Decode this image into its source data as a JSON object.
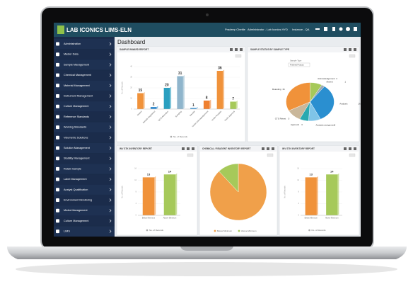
{
  "header": {
    "logo": "LAB ICONICS LIMS-ELN",
    "user": "Pradeep Chettle",
    "role": "Administrator - Lab Iconics HYD",
    "instance": "Instance - QA"
  },
  "sidebar": [
    "Administration",
    "Master Data",
    "Sample Management",
    "Chemical Management",
    "Material Management",
    "Instrument Management",
    "Culture Management",
    "Reference Standards",
    "Working Standards",
    "Volumetric Solutions",
    "Solution Management",
    "Stability Management",
    "Retain Sample",
    "Label Management",
    "Analyst Qualification",
    "Environment Monitoring",
    "Media Management",
    "Culture Management",
    "LIMS"
  ],
  "page_title": "Dashboard",
  "panels": [
    {
      "title": "SAMPLE INWARD REPORT",
      "type": "bar",
      "y_label": "No. of Records",
      "legend": "No. of Records",
      "categories": [
        "Inward",
        "Sample Registered",
        "QC/A Allocation",
        "Sampling",
        "Receipt",
        "Under Acknowledgement",
        "Under Analysis",
        "Under Approval"
      ],
      "values": [
        15,
        2,
        20,
        31,
        1,
        8,
        36,
        7
      ],
      "colors": [
        "#f0923a",
        "#3a8fd0",
        "#2a9fc0",
        "#8fb5cc",
        "#3a8fd0",
        "#ef8030",
        "#f0923a",
        "#a6c95a"
      ],
      "ylim": [
        0,
        40
      ],
      "yticks": [
        0,
        10,
        20,
        30,
        40
      ]
    },
    {
      "title": "SAMPLE STATUS BY SAMPLE TYPE",
      "type": "pie",
      "filter_label": "Sample Type",
      "filter_value": "Finished Product",
      "categories": [
        "Acknowledgement",
        "Absent",
        "Analysis",
        "Analysis assignment",
        "Approval",
        "CTS Retest",
        "Retesting"
      ],
      "values": [
        4,
        1,
        16,
        4,
        3,
        5,
        16
      ],
      "colors": [
        "#a6c95a",
        "#9aa8b4",
        "#2a8fd0",
        "#7fc4e8",
        "#2aa9b0",
        "#c9b79a",
        "#f0923a"
      ]
    },
    {
      "title": "INV STK INVENTORY REPORT",
      "type": "bar",
      "y_label": "No. of Records",
      "legend": "No. of Records",
      "categories": [
        "Below Minimum",
        "Above Minimum"
      ],
      "values": [
        13,
        14
      ],
      "colors": [
        "#f0923a",
        "#a6c95a"
      ],
      "ylim": [
        0,
        16
      ],
      "yticks": [
        0,
        4,
        8,
        12,
        16
      ]
    },
    {
      "title": "CHEMICAL / REAGENT INVENTORY REPORT",
      "type": "pie",
      "legend_bottom": true,
      "categories": [
        "Below Minimum",
        "Above Minimum"
      ],
      "values": [
        22,
        3
      ],
      "colors": [
        "#f0a04a",
        "#a6c95a"
      ]
    },
    {
      "title": "INV STK INVENTORY REPORT",
      "type": "bar",
      "y_label": "No. of Records",
      "legend": "No. of Records",
      "categories": [
        "Below Minimum",
        "Above Minimum"
      ],
      "values": [
        13,
        14
      ],
      "colors": [
        "#f0923a",
        "#a6c95a"
      ],
      "ylim": [
        0,
        16
      ],
      "yticks": [
        0,
        4,
        8,
        12,
        16
      ]
    }
  ]
}
